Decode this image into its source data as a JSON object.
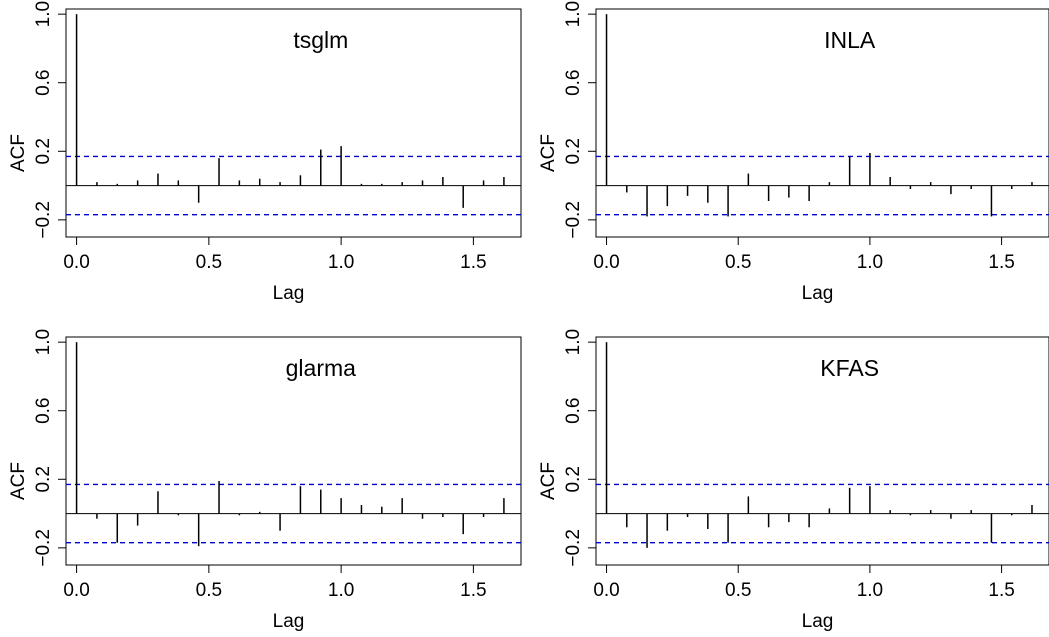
{
  "chart_data": [
    {
      "type": "bar",
      "title": "tsglm",
      "xlabel": "Lag",
      "ylabel": "ACF",
      "xlim": [
        -0.04,
        1.68
      ],
      "ylim": [
        -0.3,
        1.03
      ],
      "xticks": [
        "0.0",
        "0.5",
        "1.0",
        "1.5"
      ],
      "xtick_values": [
        0,
        0.5,
        1.0,
        1.5
      ],
      "yticks": [
        "−0.2",
        "0.2",
        "0.6",
        "1.0"
      ],
      "ytick_values": [
        -0.2,
        0.2,
        0.6,
        1.0
      ],
      "confidence_bound": 0.17,
      "lags": [
        0,
        0.0769,
        0.1538,
        0.2308,
        0.3077,
        0.3846,
        0.4615,
        0.5385,
        0.6154,
        0.6923,
        0.7692,
        0.8462,
        0.9231,
        1.0,
        1.0769,
        1.1538,
        1.2308,
        1.3077,
        1.3846,
        1.4615,
        1.5385,
        1.6154
      ],
      "acf": [
        1.0,
        0.02,
        0.01,
        0.03,
        0.07,
        0.03,
        -0.1,
        0.16,
        0.03,
        0.04,
        0.02,
        0.06,
        0.21,
        0.23,
        0.01,
        0.01,
        0.02,
        0.03,
        0.05,
        -0.13,
        0.03,
        0.05
      ]
    },
    {
      "type": "bar",
      "title": "INLA",
      "xlabel": "Lag",
      "ylabel": "ACF",
      "xlim": [
        -0.04,
        1.68
      ],
      "ylim": [
        -0.3,
        1.03
      ],
      "xticks": [
        "0.0",
        "0.5",
        "1.0",
        "1.5"
      ],
      "xtick_values": [
        0,
        0.5,
        1.0,
        1.5
      ],
      "yticks": [
        "−0.2",
        "0.2",
        "0.6",
        "1.0"
      ],
      "ytick_values": [
        -0.2,
        0.2,
        0.6,
        1.0
      ],
      "confidence_bound": 0.17,
      "lags": [
        0,
        0.0769,
        0.1538,
        0.2308,
        0.3077,
        0.3846,
        0.4615,
        0.5385,
        0.6154,
        0.6923,
        0.7692,
        0.8462,
        0.9231,
        1.0,
        1.0769,
        1.1538,
        1.2308,
        1.3077,
        1.3846,
        1.4615,
        1.5385,
        1.6154
      ],
      "acf": [
        1.0,
        -0.04,
        -0.18,
        -0.12,
        -0.06,
        -0.1,
        -0.18,
        0.07,
        -0.09,
        -0.07,
        -0.09,
        0.02,
        0.17,
        0.19,
        0.05,
        -0.02,
        0.02,
        -0.05,
        -0.02,
        -0.18,
        -0.02,
        0.02
      ]
    },
    {
      "type": "bar",
      "title": "glarma",
      "xlabel": "Lag",
      "ylabel": "ACF",
      "xlim": [
        -0.04,
        1.68
      ],
      "ylim": [
        -0.3,
        1.03
      ],
      "xticks": [
        "0.0",
        "0.5",
        "1.0",
        "1.5"
      ],
      "xtick_values": [
        0,
        0.5,
        1.0,
        1.5
      ],
      "yticks": [
        "−0.2",
        "0.2",
        "0.6",
        "1.0"
      ],
      "ytick_values": [
        -0.2,
        0.2,
        0.6,
        1.0
      ],
      "confidence_bound": 0.17,
      "lags": [
        0,
        0.0769,
        0.1538,
        0.2308,
        0.3077,
        0.3846,
        0.4615,
        0.5385,
        0.6154,
        0.6923,
        0.7692,
        0.8462,
        0.9231,
        1.0,
        1.0769,
        1.1538,
        1.2308,
        1.3077,
        1.3846,
        1.4615,
        1.5385,
        1.6154
      ],
      "acf": [
        1.0,
        -0.03,
        -0.17,
        -0.07,
        0.13,
        -0.01,
        -0.19,
        0.19,
        -0.01,
        0.01,
        -0.1,
        0.16,
        0.14,
        0.09,
        0.05,
        0.04,
        0.09,
        -0.03,
        -0.02,
        -0.12,
        -0.02,
        0.09
      ]
    },
    {
      "type": "bar",
      "title": "KFAS",
      "xlabel": "Lag",
      "ylabel": "ACF",
      "xlim": [
        -0.04,
        1.68
      ],
      "ylim": [
        -0.3,
        1.03
      ],
      "xticks": [
        "0.0",
        "0.5",
        "1.0",
        "1.5"
      ],
      "xtick_values": [
        0,
        0.5,
        1.0,
        1.5
      ],
      "yticks": [
        "−0.2",
        "0.2",
        "0.6",
        "1.0"
      ],
      "ytick_values": [
        -0.2,
        0.2,
        0.6,
        1.0
      ],
      "confidence_bound": 0.17,
      "lags": [
        0,
        0.0769,
        0.1538,
        0.2308,
        0.3077,
        0.3846,
        0.4615,
        0.5385,
        0.6154,
        0.6923,
        0.7692,
        0.8462,
        0.9231,
        1.0,
        1.0769,
        1.1538,
        1.2308,
        1.3077,
        1.3846,
        1.4615,
        1.5385,
        1.6154
      ],
      "acf": [
        1.0,
        -0.08,
        -0.2,
        -0.1,
        -0.02,
        -0.09,
        -0.17,
        0.1,
        -0.08,
        -0.05,
        -0.08,
        0.03,
        0.15,
        0.16,
        0.02,
        -0.01,
        0.02,
        -0.03,
        0.02,
        -0.17,
        -0.01,
        0.05
      ]
    }
  ],
  "colors": {
    "bounds": "#0000cc",
    "bars": "#000000",
    "axes": "#000000",
    "background": "#ffffff"
  }
}
